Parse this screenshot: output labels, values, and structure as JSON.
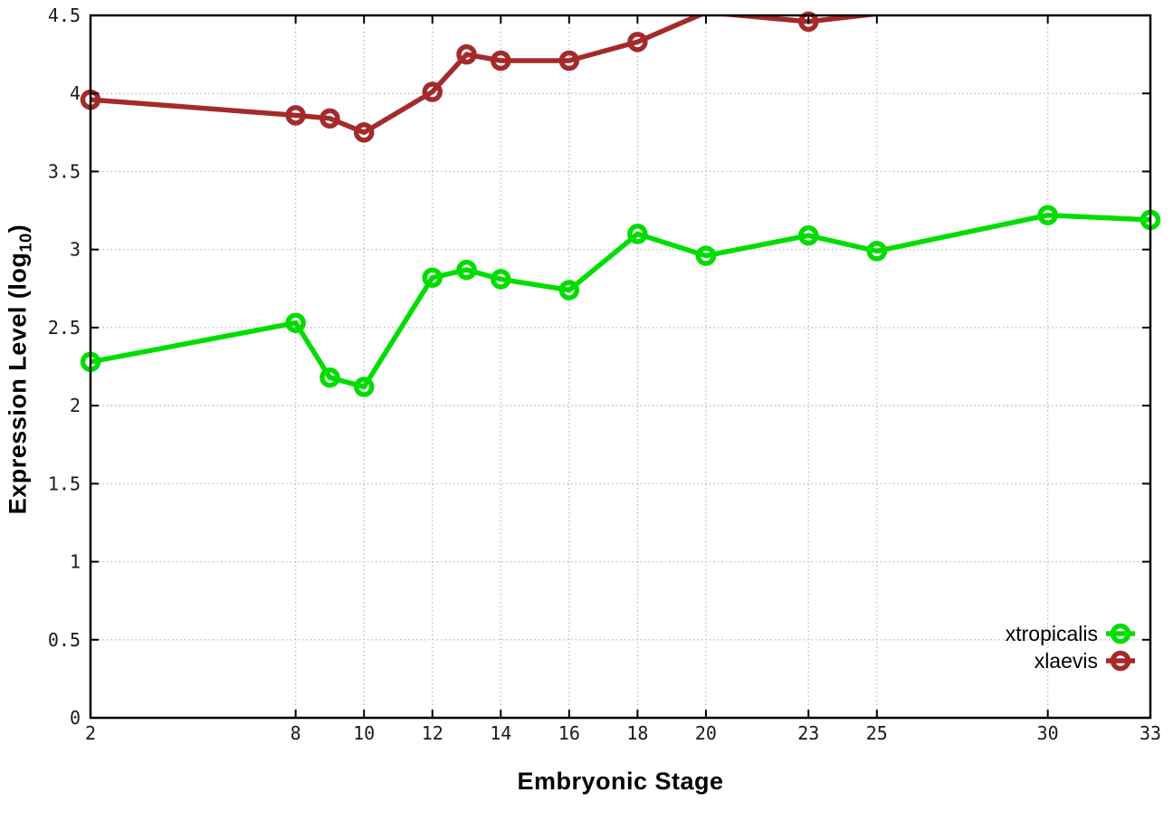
{
  "chart_data": {
    "type": "line",
    "title": "",
    "xlabel": "Embryonic Stage",
    "ylabel": "Expression Level (log10)",
    "ylabel_parts": {
      "prefix": "Expression Level (log",
      "sub": "10",
      "suffix": ")"
    },
    "xlim": [
      2,
      33
    ],
    "ylim": [
      0,
      4.5
    ],
    "x_ticks": [
      2,
      8,
      10,
      12,
      14,
      16,
      18,
      20,
      23,
      25,
      30,
      33
    ],
    "y_ticks": [
      "0",
      "0.5",
      "1",
      "1.5",
      "2",
      "2.5",
      "3",
      "3.5",
      "4",
      "4.5"
    ],
    "grid": true,
    "legend_position": "bottom-right",
    "x": [
      2,
      8,
      9,
      10,
      12,
      13,
      14,
      16,
      18,
      20,
      23,
      25,
      30,
      33
    ],
    "series": [
      {
        "name": "xtropicalis",
        "color": "#00dd00",
        "values": [
          2.28,
          2.53,
          2.18,
          2.12,
          2.82,
          2.87,
          2.81,
          2.74,
          3.1,
          2.96,
          3.09,
          2.99,
          3.22,
          3.19
        ]
      },
      {
        "name": "xlaevis",
        "color": "#a52a2a",
        "values": [
          3.96,
          3.86,
          3.84,
          3.75,
          4.01,
          4.25,
          4.21,
          4.21,
          4.33,
          4.52,
          4.46,
          4.51,
          null,
          null
        ]
      }
    ],
    "note": "xlaevis line is clipped at the top axis (y=4.5) between stages ~20 and ~25; stages 20 and 25 values estimated above axis range"
  },
  "colors": {
    "background": "#ffffff",
    "axis": "#000000",
    "grid": "#b8b8b8",
    "tick_label": "#1a1a1a",
    "series_xtropicalis": "#00dd00",
    "series_xlaevis": "#a52a2a"
  }
}
